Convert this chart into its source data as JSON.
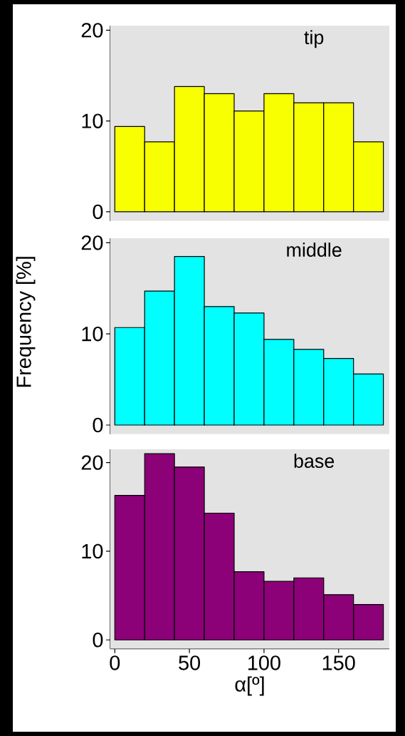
{
  "chart_data": [
    {
      "type": "histogram",
      "title": "tip",
      "bins": [
        0,
        20,
        40,
        60,
        80,
        100,
        120,
        140,
        160,
        180
      ],
      "values": [
        9.4,
        7.7,
        13.8,
        13.0,
        11.1,
        13.0,
        12.0,
        12.0,
        7.7
      ],
      "color": "#f8ff00",
      "xlim": [
        -3,
        184
      ],
      "ylim": [
        -1,
        20.5
      ],
      "yticks": [
        0,
        10,
        20
      ],
      "tick_labels": "y"
    },
    {
      "type": "histogram",
      "title": "middle",
      "ylabel": "Frequency [%]",
      "bins": [
        0,
        20,
        40,
        60,
        80,
        100,
        120,
        140,
        160,
        180
      ],
      "values": [
        10.7,
        14.7,
        18.5,
        13.0,
        12.3,
        9.4,
        8.3,
        7.3,
        5.6
      ],
      "color": "#00ffff",
      "xlim": [
        -3,
        184
      ],
      "ylim": [
        -1,
        20.5
      ],
      "yticks": [
        0,
        10,
        20
      ],
      "tick_labels": "y"
    },
    {
      "type": "histogram",
      "title": "base",
      "xlabel": "α[º]",
      "bins": [
        0,
        20,
        40,
        60,
        80,
        100,
        120,
        140,
        160,
        180
      ],
      "values": [
        16.3,
        21.0,
        19.5,
        14.3,
        7.7,
        6.6,
        7.0,
        5.1,
        4.0
      ],
      "color": "#8c0078",
      "xlim": [
        -3,
        184
      ],
      "ylim": [
        -1,
        21.5
      ],
      "xticks": [
        0,
        50,
        100,
        150
      ],
      "yticks": [
        0,
        10,
        20
      ]
    }
  ]
}
